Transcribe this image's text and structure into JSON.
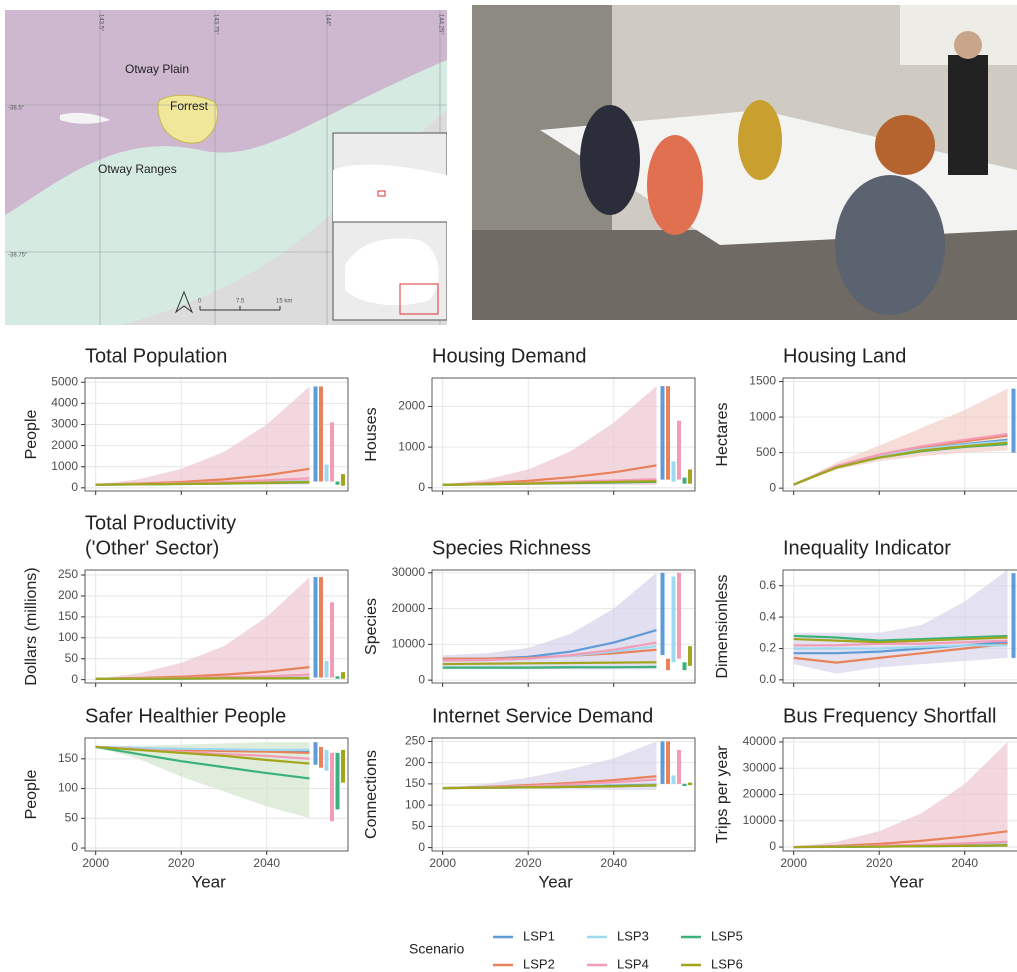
{
  "map": {
    "labels": [
      "Otway Plain",
      "Forrest",
      "Otway Ranges"
    ],
    "lon_labels": [
      "143.5°",
      "143.75°",
      "144°",
      "144.25°"
    ],
    "lat_labels": [
      "-38.5°",
      "-38.75°"
    ],
    "scale_labels": [
      "0",
      "7.5",
      "15 km"
    ]
  },
  "legend": {
    "title": "Scenario",
    "series": [
      {
        "name": "LSP1",
        "color": "#5f9bd6"
      },
      {
        "name": "LSP2",
        "color": "#e8825a"
      },
      {
        "name": "LSP3",
        "color": "#9fd9f0"
      },
      {
        "name": "LSP4",
        "color": "#f49cb6"
      },
      {
        "name": "LSP5",
        "color": "#3bb27b"
      },
      {
        "name": "LSP6",
        "color": "#a3a51c"
      }
    ]
  },
  "chart_data": [
    {
      "type": "line",
      "title": "Total Population",
      "ylabel": "People",
      "x": [
        2000,
        2010,
        2020,
        2030,
        2040,
        2050
      ],
      "xlim": [
        1997.5,
        2059
      ],
      "xticks": [
        2000,
        2020,
        2040
      ],
      "xtick_labels": false,
      "ylim": [
        -150,
        5200
      ],
      "yticks": [
        0,
        1000,
        2000,
        3000,
        4000,
        5000
      ],
      "band": {
        "color": "#ecc6d2",
        "lower": [
          150,
          150,
          150,
          150,
          150,
          150
        ],
        "upper": [
          150,
          400,
          900,
          1700,
          3000,
          4800
        ]
      },
      "series": [
        {
          "values": [
            150,
            170,
            190,
            220,
            260,
            300
          ],
          "range": [
            300,
            4800
          ]
        },
        {
          "values": [
            150,
            200,
            280,
            400,
            600,
            900
          ],
          "range": [
            300,
            4800
          ]
        },
        {
          "values": [
            150,
            170,
            190,
            220,
            250,
            290
          ],
          "range": [
            300,
            1100
          ]
        },
        {
          "values": [
            150,
            180,
            220,
            280,
            360,
            450
          ],
          "range": [
            300,
            3100
          ]
        },
        {
          "values": [
            150,
            160,
            180,
            200,
            230,
            260
          ],
          "range": [
            150,
            300
          ]
        },
        {
          "values": [
            150,
            165,
            185,
            210,
            240,
            280
          ],
          "range": [
            100,
            650
          ]
        }
      ]
    },
    {
      "type": "line",
      "title": "Housing Demand",
      "ylabel": "Houses",
      "x": [
        2000,
        2010,
        2020,
        2030,
        2040,
        2050
      ],
      "xlim": [
        1997.5,
        2059
      ],
      "xticks": [
        2000,
        2020,
        2040
      ],
      "xtick_labels": false,
      "ylim": [
        -80,
        2700
      ],
      "yticks": [
        0,
        1000,
        2000
      ],
      "band": {
        "color": "#ecc6d2",
        "lower": [
          70,
          70,
          70,
          70,
          70,
          70
        ],
        "upper": [
          70,
          200,
          450,
          900,
          1600,
          2500
        ]
      },
      "series": [
        {
          "values": [
            70,
            90,
            110,
            130,
            150,
            170
          ],
          "range": [
            200,
            2500
          ]
        },
        {
          "values": [
            70,
            110,
            170,
            260,
            380,
            550
          ],
          "range": [
            200,
            2500
          ]
        },
        {
          "values": [
            70,
            90,
            110,
            130,
            150,
            165
          ],
          "range": [
            150,
            650
          ]
        },
        {
          "values": [
            70,
            95,
            120,
            150,
            180,
            210
          ],
          "range": [
            200,
            1650
          ]
        },
        {
          "values": [
            70,
            85,
            100,
            115,
            130,
            145
          ],
          "range": [
            100,
            250
          ]
        },
        {
          "values": [
            70,
            88,
            105,
            125,
            145,
            160
          ],
          "range": [
            100,
            450
          ]
        }
      ]
    },
    {
      "type": "line",
      "title": "Housing Land",
      "ylabel": "Hectares",
      "x": [
        2000,
        2010,
        2020,
        2030,
        2040,
        2050
      ],
      "xlim": [
        1997.5,
        2059
      ],
      "xticks": [
        2000,
        2020,
        2040
      ],
      "xtick_labels": false,
      "ylim": [
        -40,
        1550
      ],
      "yticks": [
        0,
        500,
        1000,
        1500
      ],
      "band": {
        "color": "#f2cfc8",
        "lower": [
          50,
          260,
          380,
          450,
          500,
          530
        ],
        "upper": [
          50,
          360,
          600,
          850,
          1100,
          1400
        ]
      },
      "series": [
        {
          "values": [
            50,
            300,
            450,
            550,
            620,
            680
          ],
          "range": [
            500,
            1400
          ]
        },
        {
          "values": [
            50,
            310,
            470,
            580,
            660,
            740
          ]
        },
        {
          "values": [
            50,
            300,
            450,
            550,
            610,
            660
          ]
        },
        {
          "values": [
            50,
            310,
            470,
            590,
            680,
            760
          ]
        },
        {
          "values": [
            50,
            290,
            430,
            520,
            580,
            620
          ]
        },
        {
          "values": [
            50,
            290,
            430,
            530,
            590,
            640
          ]
        }
      ]
    },
    {
      "type": "line",
      "title": [
        "Total Productivity",
        "('Other' Sector)"
      ],
      "ylabel": "Dollars (millions)",
      "x": [
        2000,
        2010,
        2020,
        2030,
        2040,
        2050
      ],
      "xlim": [
        1997.5,
        2059
      ],
      "xticks": [
        2000,
        2020,
        2040
      ],
      "xtick_labels": false,
      "ylim": [
        -8,
        262
      ],
      "yticks": [
        0,
        50,
        100,
        150,
        200,
        250
      ],
      "band": {
        "color": "#ecc6d2",
        "lower": [
          2,
          2,
          2,
          2,
          2,
          2
        ],
        "upper": [
          2,
          15,
          40,
          80,
          150,
          245
        ]
      },
      "series": [
        {
          "values": [
            2,
            2,
            3,
            3,
            4,
            5
          ],
          "range": [
            5,
            245
          ]
        },
        {
          "values": [
            2,
            4,
            7,
            12,
            19,
            30
          ],
          "range": [
            5,
            245
          ]
        },
        {
          "values": [
            2,
            2,
            3,
            3,
            4,
            5
          ],
          "range": [
            5,
            45
          ]
        },
        {
          "values": [
            2,
            3,
            4,
            6,
            8,
            12
          ],
          "range": [
            5,
            185
          ]
        },
        {
          "values": [
            2,
            2,
            2,
            3,
            3,
            3
          ],
          "range": [
            2,
            8
          ]
        },
        {
          "values": [
            2,
            2,
            3,
            3,
            3,
            4
          ],
          "range": [
            2,
            18
          ]
        }
      ]
    },
    {
      "type": "line",
      "title": "Species Richness",
      "ylabel": "Species",
      "x": [
        2000,
        2010,
        2020,
        2030,
        2040,
        2050
      ],
      "xlim": [
        1997.5,
        2059
      ],
      "xticks": [
        2000,
        2020,
        2040
      ],
      "xtick_labels": false,
      "ylim": [
        -800,
        30800
      ],
      "yticks": [
        0,
        10000,
        20000,
        30000
      ],
      "band": {
        "color": "#d5d3ea",
        "lower": [
          3000,
          3000,
          3000,
          3000,
          3000,
          3000
        ],
        "upper": [
          7000,
          7500,
          9000,
          13000,
          20000,
          30000
        ]
      },
      "series": [
        {
          "values": [
            6000,
            6000,
            6500,
            8000,
            10500,
            14000
          ],
          "range": [
            7000,
            30000
          ]
        },
        {
          "values": [
            6000,
            6000,
            6200,
            6800,
            7500,
            8500
          ],
          "range": [
            2800,
            6000
          ]
        },
        {
          "values": [
            5500,
            5600,
            6000,
            6800,
            8000,
            9500
          ],
          "range": [
            5000,
            29000
          ]
        },
        {
          "values": [
            5500,
            5600,
            6000,
            7000,
            8500,
            10500
          ],
          "range": [
            6000,
            30000
          ]
        },
        {
          "values": [
            3500,
            3500,
            3500,
            3600,
            3600,
            3700
          ],
          "range": [
            2800,
            5000
          ]
        },
        {
          "values": [
            4500,
            4600,
            4700,
            4800,
            4900,
            5000
          ],
          "range": [
            4000,
            9500
          ]
        }
      ]
    },
    {
      "type": "line",
      "title": "Inequality Indicator",
      "ylabel": "Dimensionless",
      "x": [
        2000,
        2010,
        2020,
        2030,
        2040,
        2050
      ],
      "xlim": [
        1997.5,
        2059
      ],
      "xticks": [
        2000,
        2020,
        2040
      ],
      "xtick_labels": false,
      "ylim": [
        -0.02,
        0.7
      ],
      "yticks": [
        {
          "value": 0,
          "label": "0.0"
        },
        0.2,
        0.4,
        0.6
      ],
      "band": {
        "color": "#d8d4ea",
        "lower": [
          0.1,
          0.04,
          0.08,
          0.1,
          0.12,
          0.14
        ],
        "upper": [
          0.3,
          0.3,
          0.3,
          0.35,
          0.5,
          0.7
        ]
      },
      "series": [
        {
          "values": [
            0.17,
            0.17,
            0.18,
            0.2,
            0.22,
            0.24
          ],
          "range": [
            0.14,
            0.68
          ]
        },
        {
          "values": [
            0.14,
            0.11,
            0.14,
            0.17,
            0.2,
            0.23
          ]
        },
        {
          "values": [
            0.2,
            0.2,
            0.2,
            0.21,
            0.22,
            0.22
          ]
        },
        {
          "values": [
            0.22,
            0.22,
            0.23,
            0.23,
            0.24,
            0.25
          ]
        },
        {
          "values": [
            0.28,
            0.27,
            0.25,
            0.26,
            0.27,
            0.28
          ]
        },
        {
          "values": [
            0.26,
            0.25,
            0.24,
            0.25,
            0.26,
            0.27
          ]
        }
      ]
    },
    {
      "type": "line",
      "title": "Safer Healthier People",
      "ylabel": "People",
      "xlabel": "Year",
      "x": [
        2000,
        2010,
        2020,
        2030,
        2040,
        2050
      ],
      "xlim": [
        1997.5,
        2059
      ],
      "xticks": [
        2000,
        2020,
        2040
      ],
      "xtick_labels": true,
      "ylim": [
        -5,
        185
      ],
      "yticks": [
        0,
        50,
        100,
        150
      ],
      "band": {
        "color": "#d3e6cf",
        "lower": [
          170,
          150,
          120,
          95,
          70,
          50
        ],
        "upper": [
          170,
          172,
          174,
          176,
          178,
          178
        ]
      },
      "series": [
        {
          "values": [
            170,
            168,
            166,
            165,
            164,
            163
          ],
          "range": [
            140,
            178
          ]
        },
        {
          "values": [
            170,
            167,
            165,
            163,
            162,
            160
          ],
          "range": [
            135,
            170
          ]
        },
        {
          "values": [
            170,
            168,
            167,
            166,
            165,
            165
          ],
          "range": [
            130,
            165
          ]
        },
        {
          "values": [
            170,
            166,
            162,
            158,
            155,
            150
          ],
          "range": [
            45,
            160
          ]
        },
        {
          "values": [
            170,
            158,
            146,
            136,
            126,
            117
          ],
          "range": [
            65,
            160
          ]
        },
        {
          "values": [
            170,
            165,
            160,
            155,
            148,
            142
          ],
          "range": [
            110,
            165
          ]
        }
      ]
    },
    {
      "type": "line",
      "title": "Internet Service Demand",
      "ylabel": "Connections",
      "xlabel": "Year",
      "x": [
        2000,
        2010,
        2020,
        2030,
        2040,
        2050
      ],
      "xlim": [
        1997.5,
        2059
      ],
      "xticks": [
        2000,
        2020,
        2040
      ],
      "xtick_labels": true,
      "ylim": [
        -8,
        258
      ],
      "yticks": [
        0,
        50,
        100,
        150,
        200,
        250
      ],
      "band": {
        "color": "#d8d4ea",
        "lower": [
          140,
          139,
          138,
          137,
          136,
          135
        ],
        "upper": [
          140,
          150,
          165,
          185,
          210,
          250
        ]
      },
      "series": [
        {
          "values": [
            140,
            141,
            142,
            144,
            146,
            148
          ],
          "range": [
            150,
            250
          ]
        },
        {
          "values": [
            140,
            143,
            147,
            152,
            159,
            168
          ],
          "range": [
            150,
            250
          ]
        },
        {
          "values": [
            140,
            141,
            142,
            143,
            145,
            147
          ],
          "range": [
            150,
            170
          ]
        },
        {
          "values": [
            140,
            142,
            145,
            149,
            154,
            160
          ],
          "range": [
            150,
            230
          ]
        },
        {
          "values": [
            140,
            141,
            142,
            143,
            145,
            146
          ],
          "range": [
            145,
            150
          ]
        },
        {
          "values": [
            140,
            141,
            142,
            143,
            144,
            147
          ],
          "range": [
            147,
            153
          ]
        }
      ]
    },
    {
      "type": "line",
      "title": "Bus Frequency Shortfall",
      "ylabel": "Trips per year",
      "xlabel": "Year",
      "x": [
        2000,
        2010,
        2020,
        2030,
        2040,
        2050
      ],
      "xlim": [
        1997.5,
        2059
      ],
      "xticks": [
        2000,
        2020,
        2040
      ],
      "xtick_labels": true,
      "ylim": [
        -1500,
        41500
      ],
      "yticks": [
        0,
        10000,
        20000,
        30000,
        40000
      ],
      "band": {
        "color": "#ecc6d2",
        "lower": [
          0,
          0,
          0,
          0,
          0,
          0
        ],
        "upper": [
          0,
          2000,
          6000,
          13000,
          24000,
          40000
        ]
      },
      "series": [
        {
          "values": [
            0,
            100,
            250,
            450,
            700,
            1000
          ]
        },
        {
          "values": [
            0,
            400,
            1200,
            2400,
            4000,
            6000
          ]
        },
        {
          "values": [
            0,
            100,
            200,
            400,
            600,
            900
          ]
        },
        {
          "values": [
            0,
            200,
            500,
            900,
            1400,
            2000
          ]
        },
        {
          "values": [
            0,
            80,
            160,
            300,
            450,
            600
          ]
        },
        {
          "values": [
            0,
            90,
            180,
            330,
            500,
            700
          ]
        }
      ]
    }
  ]
}
